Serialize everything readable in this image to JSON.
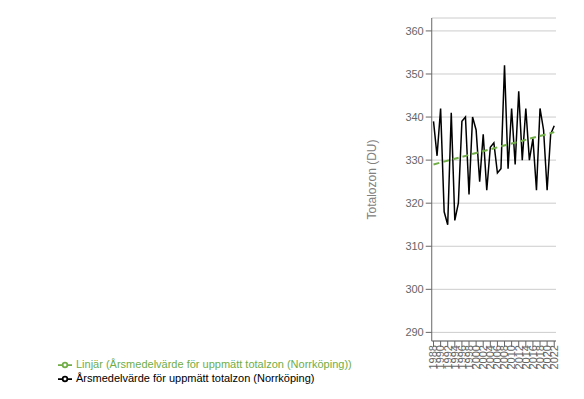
{
  "chart_data": {
    "type": "line",
    "x": [
      1988,
      1989,
      1990,
      1991,
      1992,
      1993,
      1994,
      1995,
      1996,
      1997,
      1998,
      1999,
      2000,
      2001,
      2002,
      2003,
      2004,
      2005,
      2006,
      2007,
      2008,
      2009,
      2010,
      2011,
      2012,
      2013,
      2014,
      2015,
      2016,
      2017,
      2018,
      2019,
      2020,
      2021,
      2022
    ],
    "series": [
      {
        "name": "Årsmedelvärde för uppmätt totalzon (Norrköping)",
        "color": "#000000",
        "line_style": "solid",
        "values": [
          339,
          331,
          342,
          318,
          315,
          341,
          316,
          320,
          339,
          340,
          322,
          340,
          337,
          325,
          336,
          323,
          333,
          334,
          327,
          328,
          352,
          328,
          342,
          329,
          346,
          330,
          342,
          330,
          335,
          323,
          342,
          337,
          323,
          336,
          338
        ]
      },
      {
        "name": "Linjär (Årsmedelvärde för uppmätt totalzon (Norrköping))",
        "color": "#70AD47",
        "line_style": "dashed",
        "x": [
          1988,
          2022
        ],
        "values": [
          329.0,
          336.5
        ]
      }
    ],
    "ylabel": "Totalozon (DU)",
    "xlim": [
      1987.5,
      2022.5
    ],
    "xticks": [
      1988,
      1990,
      1992,
      1994,
      1996,
      1998,
      2000,
      2002,
      2004,
      2006,
      2008,
      2010,
      2012,
      2014,
      2016,
      2018,
      2020,
      2022
    ],
    "ylim": [
      288,
      363
    ],
    "yticks": [
      290,
      300,
      310,
      320,
      330,
      340,
      350,
      360
    ],
    "grid": true,
    "legend": "bottom"
  }
}
